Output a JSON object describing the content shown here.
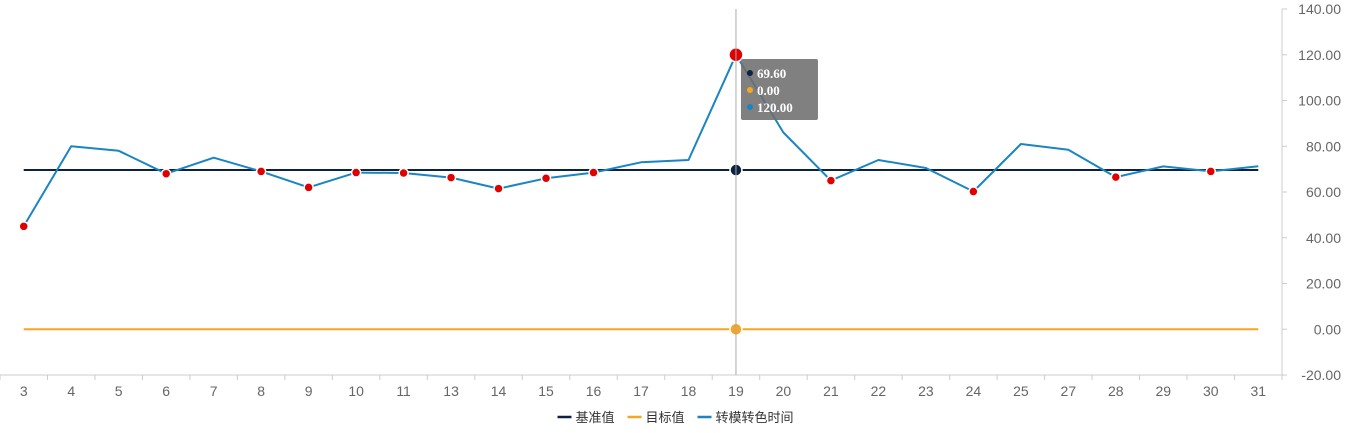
{
  "chart_data": {
    "type": "line",
    "categories": [
      "3",
      "4",
      "5",
      "6",
      "7",
      "8",
      "9",
      "10",
      "11",
      "13",
      "14",
      "15",
      "16",
      "17",
      "18",
      "19",
      "20",
      "21",
      "22",
      "23",
      "24",
      "25",
      "27",
      "28",
      "29",
      "30",
      "31"
    ],
    "ylim": [
      -20,
      140
    ],
    "yticks": [
      "-20.00",
      "0.00",
      "20.00",
      "40.00",
      "60.00",
      "80.00",
      "100.00",
      "120.00",
      "140.00"
    ],
    "y_axis_position": "right",
    "grid": false,
    "legend_position": "bottom-center",
    "series": [
      {
        "name": "基准值",
        "color": "#0d2240",
        "values": [
          69.6,
          69.6,
          69.6,
          69.6,
          69.6,
          69.6,
          69.6,
          69.6,
          69.6,
          69.6,
          69.6,
          69.6,
          69.6,
          69.6,
          69.6,
          69.6,
          69.6,
          69.6,
          69.6,
          69.6,
          69.6,
          69.6,
          69.6,
          69.6,
          69.6,
          69.6,
          69.6
        ]
      },
      {
        "name": "目标值",
        "color": "#f5a623",
        "values": [
          0,
          0,
          0,
          0,
          0,
          0,
          0,
          0,
          0,
          0,
          0,
          0,
          0,
          0,
          0,
          0,
          0,
          0,
          0,
          0,
          0,
          0,
          0,
          0,
          0,
          0,
          0
        ]
      },
      {
        "name": "转模转色时间",
        "color": "#1a85c2",
        "values": [
          45,
          80,
          78,
          68,
          75,
          69,
          62,
          68.5,
          68.3,
          66.3,
          61.5,
          66,
          68.5,
          73,
          74,
          120,
          86,
          65,
          74,
          70.5,
          60.2,
          81,
          78.5,
          66.5,
          71.2,
          69,
          71.3
        ]
      }
    ],
    "highlight_marker_color": "#e00000",
    "highlighted_points": [
      0,
      3,
      5,
      6,
      7,
      8,
      9,
      10,
      11,
      12,
      15,
      17,
      20,
      23,
      25
    ],
    "hover_index": 15,
    "tooltip": {
      "rows": [
        {
          "series": "基准值",
          "value": "69.60",
          "color": "#0d2240"
        },
        {
          "series": "目标值",
          "value": "0.00",
          "color": "#f5a623"
        },
        {
          "series": "转模转色时间",
          "value": "120.00",
          "color": "#1a85c2"
        }
      ]
    }
  }
}
